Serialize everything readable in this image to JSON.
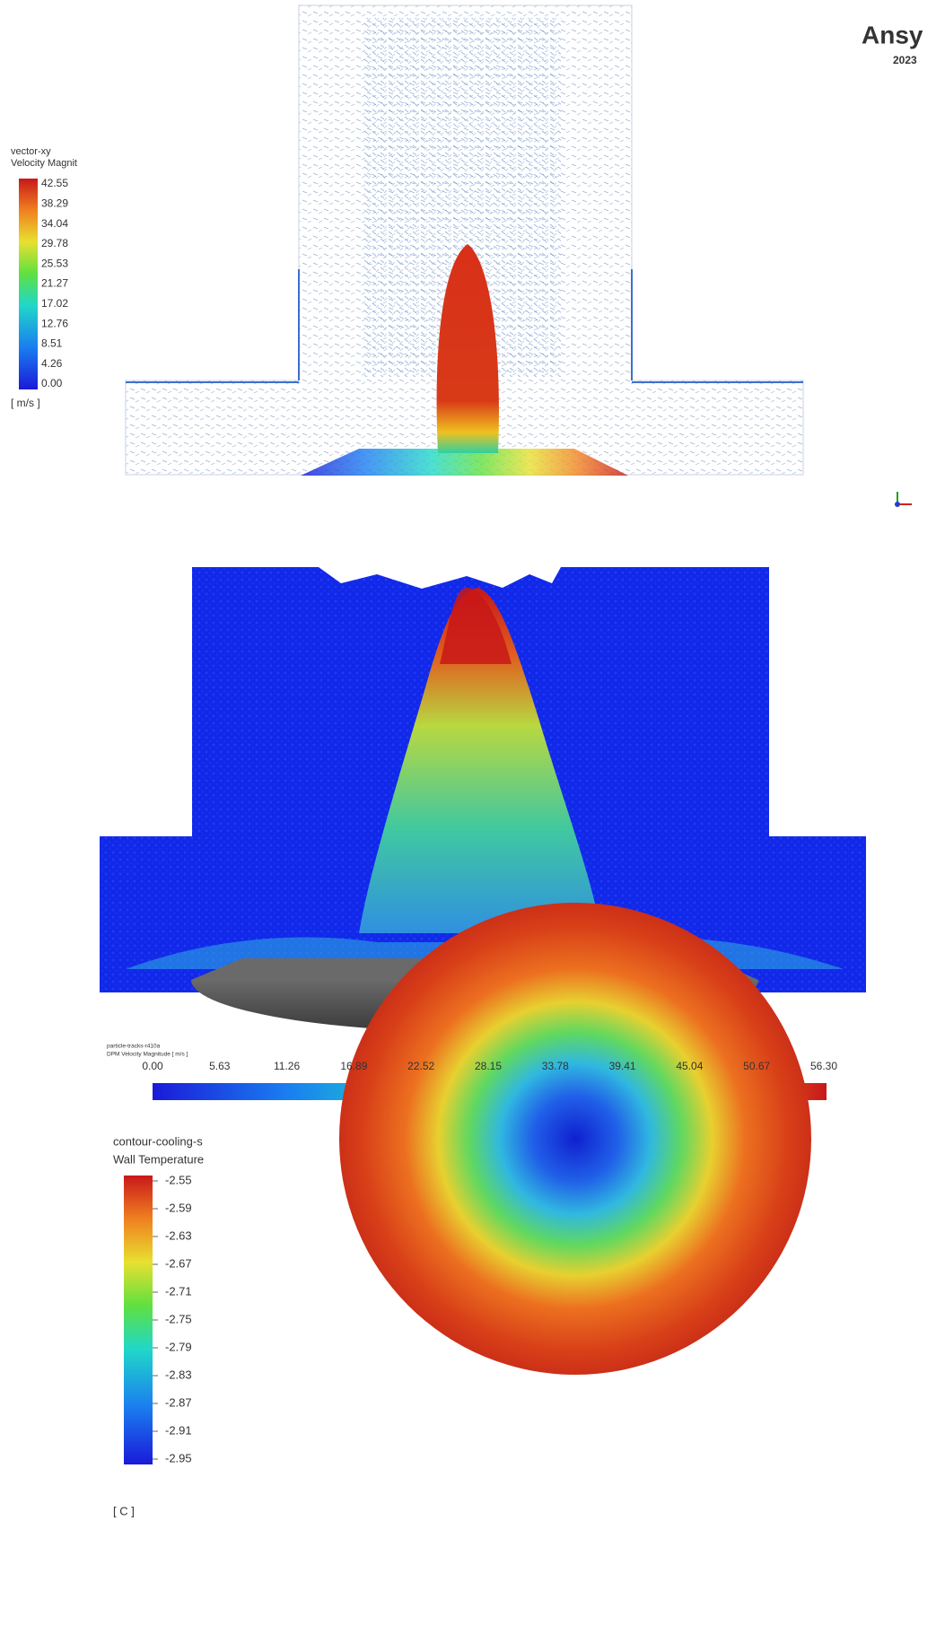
{
  "panel_vector": {
    "legend_title": "vector-xy",
    "legend_quantity": "Velocity Magnit",
    "legend_ticks": [
      "42.55",
      "38.29",
      "34.04",
      "29.78",
      "25.53",
      "21.27",
      "17.02",
      "12.76",
      "8.51",
      "4.26",
      "0.00"
    ],
    "legend_unit": "[ m/s ]",
    "brand": "Ansy",
    "brand_version": "2023"
  },
  "panel_particles": {
    "label_name": "particle-tracks-r410a",
    "label_quantity": "DPM Velocity Magnitude [ m/s ]",
    "colorbar_ticks": [
      "0.00",
      "5.63",
      "11.26",
      "16.89",
      "22.52",
      "28.15",
      "33.78",
      "39.41",
      "45.04",
      "50.67",
      "56.30"
    ]
  },
  "panel_contour": {
    "legend_title": "contour-cooling-s",
    "legend_quantity": "Wall Temperature",
    "legend_ticks": [
      "-2.55",
      "-2.59",
      "-2.63",
      "-2.67",
      "-2.71",
      "-2.75",
      "-2.79",
      "-2.83",
      "-2.87",
      "-2.91",
      "-2.95"
    ],
    "legend_unit": "[ C ]"
  }
}
